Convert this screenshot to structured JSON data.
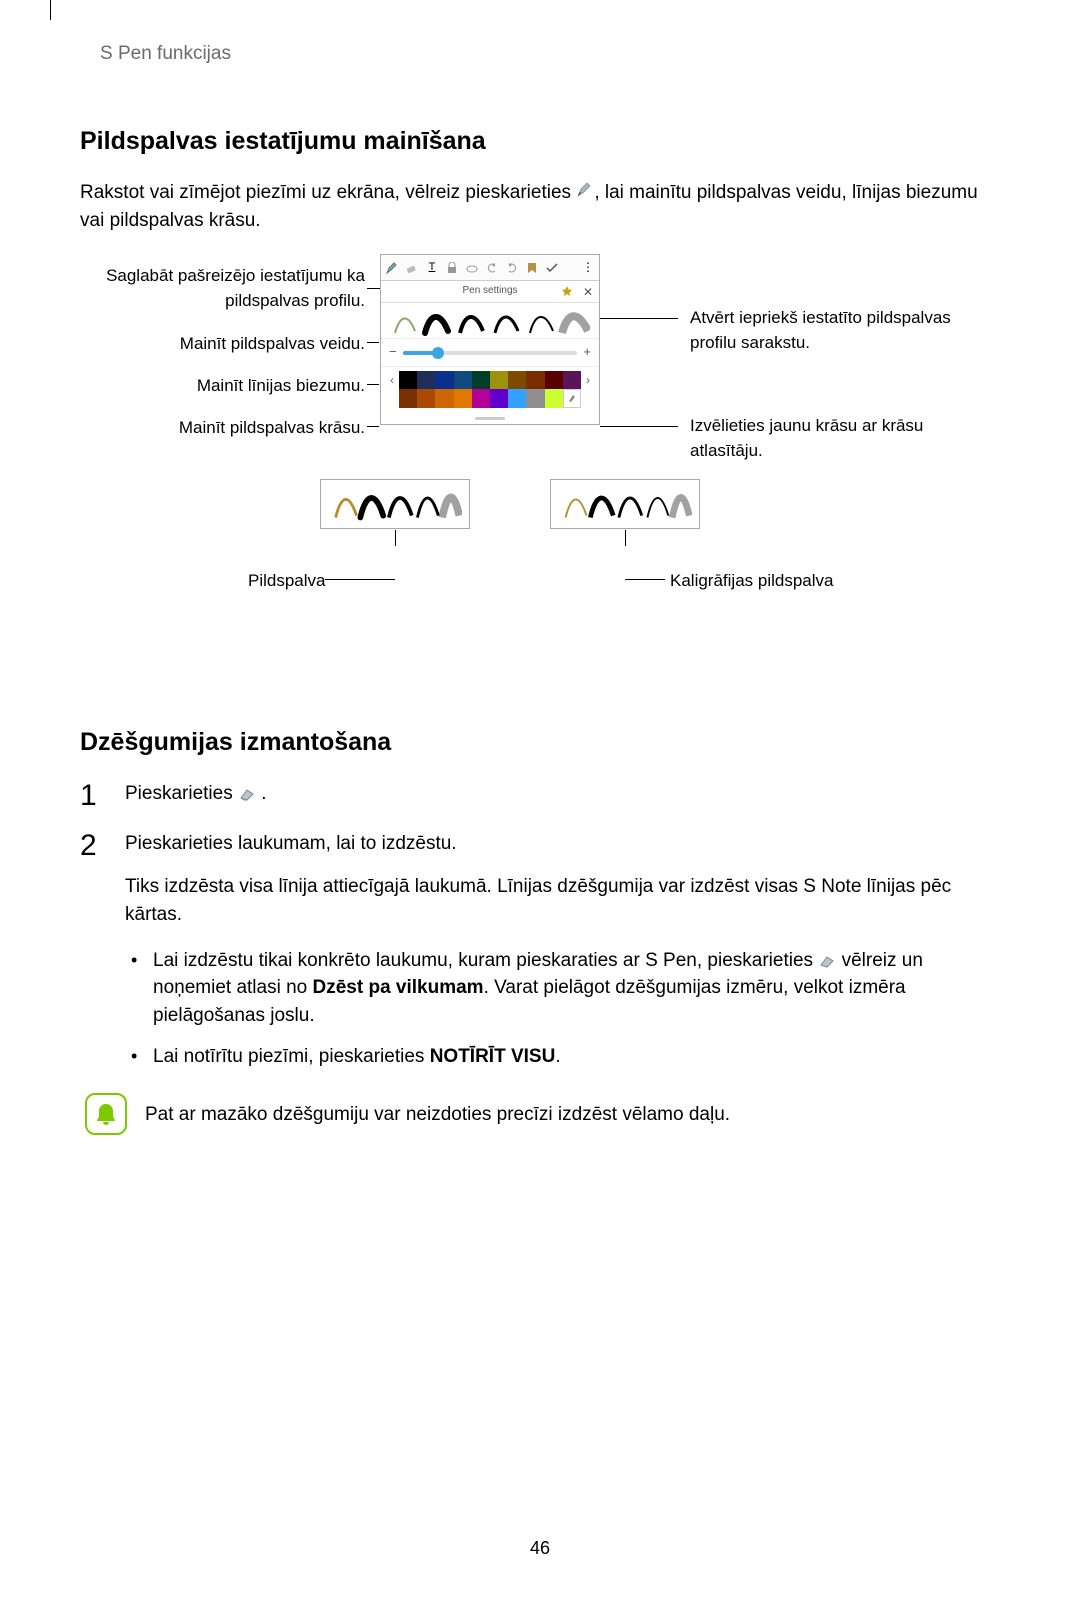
{
  "header_label": "S Pen funkcijas",
  "section1_title": "Pildspalvas iestatījumu mainīšana",
  "section1_para_before_icon": "Rakstot vai zīmējot piezīmi uz ekrāna, vēlreiz pieskarieties ",
  "section1_para_after_icon": ", lai mainītu pildspalvas veidu, līnijas biezumu vai pildspalvas krāsu.",
  "diagram": {
    "left": {
      "save_profile": "Saglabāt pašreizējo iestatījumu ka pildspalvas profilu.",
      "change_type": "Mainīt pildspalvas veidu.",
      "change_thickness": "Mainīt līnijas biezumu.",
      "change_color": "Mainīt pildspalvas krāsu."
    },
    "right": {
      "open_profiles": "Atvērt iepriekš iestatīto pildspalvas profilu sarakstu.",
      "choose_color": "Izvēlieties jaunu krāsu ar krāsu atlasītāju."
    },
    "panel": {
      "pen_settings_label": "Pen settings",
      "minus": "−",
      "plus": "+",
      "nav_left": "‹",
      "nav_right": "›"
    },
    "pen_label": "Pildspalva",
    "calligraphy_label": "Kaligrāfijas pildspalva"
  },
  "colors_row1": [
    "#000000",
    "#1f2d59",
    "#0a2f8f",
    "#114a7f",
    "#003d2b",
    "#9c930b",
    "#7d4a00",
    "#7a2e00",
    "#5a0000",
    "#5a145a"
  ],
  "colors_row2": [
    "#7a3000",
    "#aa4a00",
    "#cc6600",
    "#e07800",
    "#b30099",
    "#5f00cc",
    "#33a1ff",
    "#8f8f8f",
    "#ccff33",
    "#ffffff"
  ],
  "section2_title": "Dzēšgumijas izmantošana",
  "steps": {
    "s1_before": "Pieskarieties ",
    "s1_after": ".",
    "s2_line1": "Pieskarieties laukumam, lai to izdzēstu.",
    "s2_para": "Tiks izdzēsta visa līnija attiecīgajā laukumā. Līnijas dzēšgumija var izdzēst visas S Note līnijas pēc kārtas.",
    "bullet1_before": "Lai izdzēstu tikai konkrēto laukumu, kuram pieskaraties ar S Pen, pieskarieties ",
    "bullet1_after_icon": " vēlreiz un noņemiet atlasi no ",
    "bullet1_bold": "Dzēst pa vilkumam",
    "bullet1_tail": ". Varat pielāgot dzēšgumijas izmēru, velkot izmēra pielāgošanas joslu.",
    "bullet2_before": "Lai notīrītu piezīmi, pieskarieties ",
    "bullet2_bold": "NOTĪRĪT VISU",
    "bullet2_tail": "."
  },
  "note_text": "Pat ar mazāko dzēšgumiju var neizdoties precīzi izdzēst vēlamo daļu.",
  "page_number": "46"
}
